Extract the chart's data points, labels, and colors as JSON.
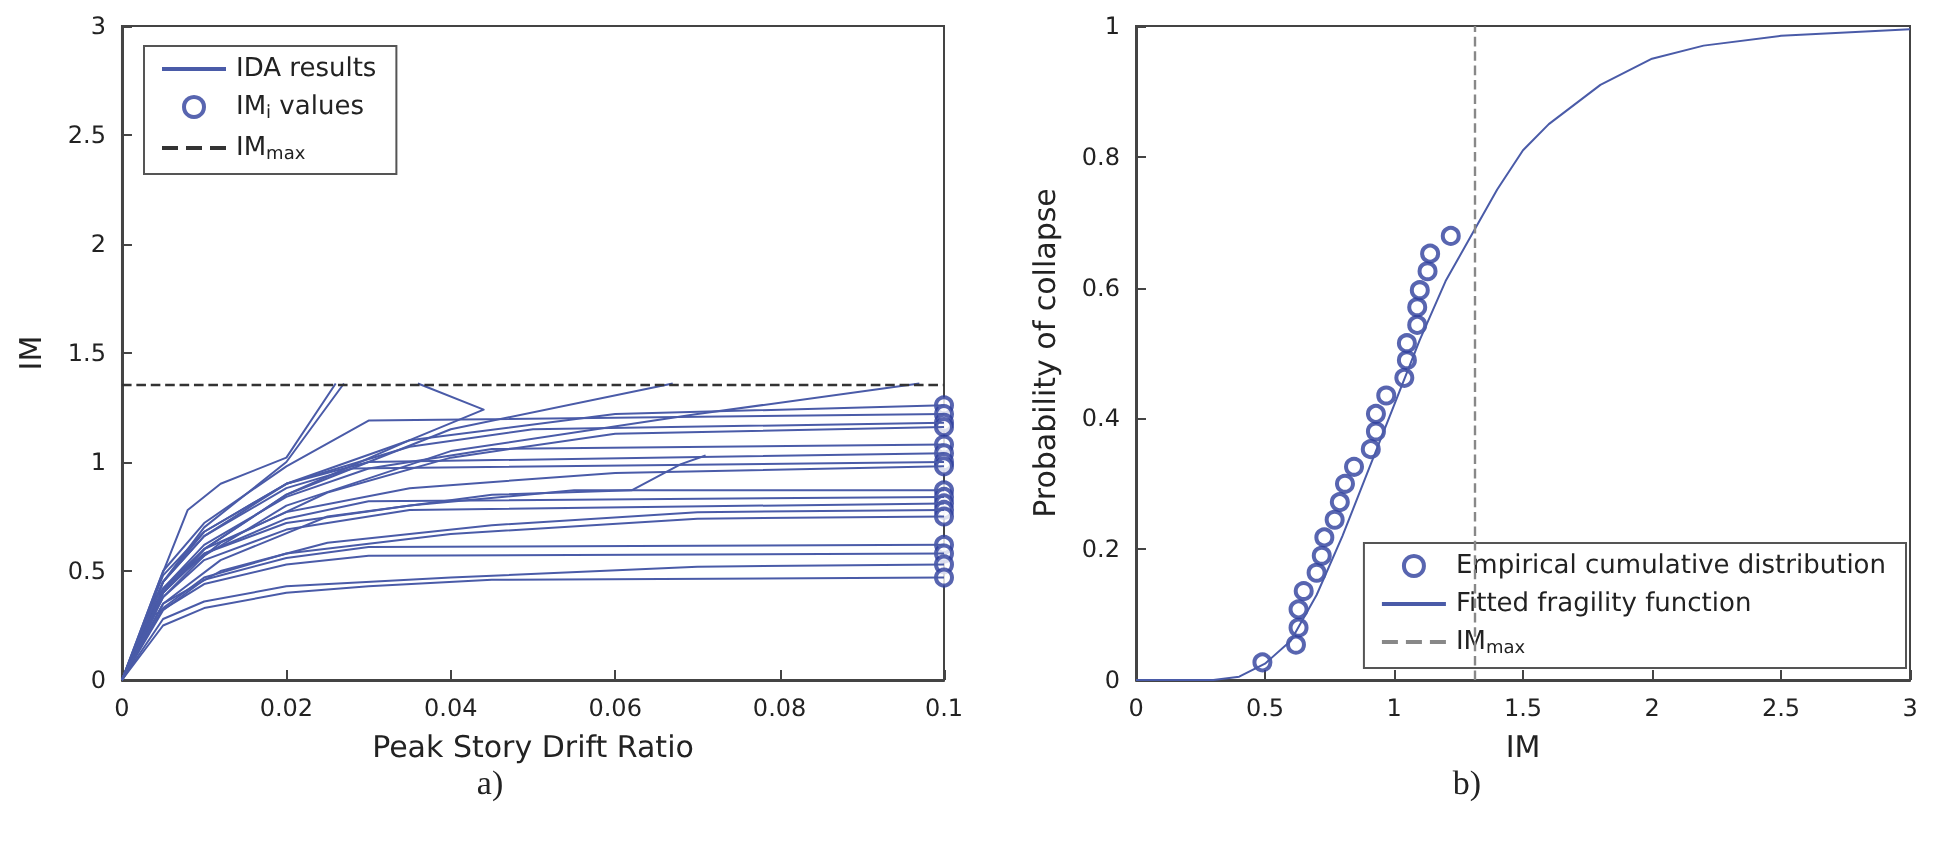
{
  "chart_data": [
    {
      "type": "line",
      "xlabel": "Peak Story Drift Ratio",
      "ylabel": "IM",
      "xlim": [
        0,
        0.1
      ],
      "xticks": [
        0,
        0.02,
        0.04,
        0.06,
        0.08,
        0.1
      ],
      "ylim": [
        0,
        3
      ],
      "yticks": [
        0,
        0.5,
        1,
        1.5,
        2,
        2.5,
        3
      ],
      "legend": "top left",
      "grid": false,
      "annotations": [
        "a)"
      ],
      "ref_lines": [
        {
          "axis": "y",
          "value": 1.36,
          "label": "IM$_{max}$",
          "color": "#333333",
          "line_style": "dashed"
        }
      ],
      "series": [
        {
          "name": "IDA results",
          "color": "#4a5ba8",
          "marker": "none",
          "x": [
            0,
            0.005,
            0.01,
            0.02,
            0.03,
            0.045,
            0.1
          ],
          "values": [
            0,
            0.25,
            0.33,
            0.4,
            0.43,
            0.46,
            0.47
          ]
        },
        {
          "color": "#4a5ba8",
          "marker": "none",
          "x": [
            0,
            0.005,
            0.01,
            0.02,
            0.04,
            0.07,
            0.1
          ],
          "values": [
            0,
            0.28,
            0.36,
            0.43,
            0.47,
            0.52,
            0.53
          ]
        },
        {
          "color": "#4a5ba8",
          "marker": "none",
          "x": [
            0,
            0.004,
            0.01,
            0.02,
            0.03,
            0.1
          ],
          "values": [
            0,
            0.3,
            0.44,
            0.53,
            0.57,
            0.58
          ]
        },
        {
          "color": "#4a5ba8",
          "marker": "none",
          "x": [
            0,
            0.005,
            0.01,
            0.02,
            0.03,
            0.1
          ],
          "values": [
            0,
            0.32,
            0.46,
            0.56,
            0.61,
            0.62
          ]
        },
        {
          "color": "#4a5ba8",
          "marker": "none",
          "x": [
            0,
            0.005,
            0.01,
            0.02,
            0.04,
            0.07,
            0.1
          ],
          "values": [
            0,
            0.33,
            0.47,
            0.58,
            0.67,
            0.74,
            0.75
          ]
        },
        {
          "color": "#4a5ba8",
          "marker": "none",
          "x": [
            0,
            0.005,
            0.012,
            0.025,
            0.045,
            0.07,
            0.1
          ],
          "values": [
            0,
            0.35,
            0.5,
            0.63,
            0.71,
            0.77,
            0.78
          ]
        },
        {
          "color": "#4a5ba8",
          "marker": "none",
          "x": [
            0,
            0.005,
            0.01,
            0.02,
            0.035,
            0.1
          ],
          "values": [
            0,
            0.38,
            0.55,
            0.69,
            0.78,
            0.81
          ]
        },
        {
          "color": "#4a5ba8",
          "marker": "none",
          "x": [
            0,
            0.005,
            0.01,
            0.02,
            0.03,
            0.1
          ],
          "values": [
            0,
            0.4,
            0.58,
            0.74,
            0.82,
            0.84
          ]
        },
        {
          "color": "#4a5ba8",
          "marker": "none",
          "x": [
            0,
            0.004,
            0.01,
            0.02,
            0.035,
            0.055,
            0.1
          ],
          "values": [
            0,
            0.38,
            0.58,
            0.72,
            0.8,
            0.87,
            0.87
          ]
        },
        {
          "color": "#4a5ba8",
          "marker": "none",
          "x": [
            0,
            0.005,
            0.01,
            0.02,
            0.035,
            0.06,
            0.1
          ],
          "values": [
            0,
            0.42,
            0.6,
            0.77,
            0.88,
            0.95,
            0.98
          ]
        },
        {
          "color": "#4a5ba8",
          "marker": "none",
          "x": [
            0,
            0.005,
            0.01,
            0.02,
            0.028,
            0.1
          ],
          "values": [
            0,
            0.45,
            0.66,
            0.88,
            0.97,
            1
          ]
        },
        {
          "color": "#4a5ba8",
          "marker": "none",
          "x": [
            0,
            0.005,
            0.01,
            0.02,
            0.03,
            0.1
          ],
          "values": [
            0,
            0.45,
            0.68,
            0.9,
            1,
            1.04
          ]
        },
        {
          "color": "#4a5ba8",
          "marker": "none",
          "x": [
            0,
            0.005,
            0.01,
            0.02,
            0.03,
            0.045,
            0.1
          ],
          "values": [
            0,
            0.42,
            0.62,
            0.84,
            0.97,
            1.06,
            1.08
          ]
        },
        {
          "color": "#4a5ba8",
          "marker": "none",
          "x": [
            0,
            0.005,
            0.012,
            0.025,
            0.04,
            0.06,
            0.1
          ],
          "values": [
            0,
            0.42,
            0.63,
            0.86,
            1.02,
            1.13,
            1.16
          ]
        },
        {
          "color": "#4a5ba8",
          "marker": "none",
          "x": [
            0,
            0.005,
            0.01,
            0.02,
            0.035,
            0.05,
            0.1
          ],
          "values": [
            0,
            0.48,
            0.68,
            0.9,
            1.07,
            1.15,
            1.18
          ]
        },
        {
          "color": "#4a5ba8",
          "marker": "none",
          "x": [
            0,
            0.005,
            0.01,
            0.02,
            0.03,
            0.1
          ],
          "values": [
            0,
            0.5,
            0.72,
            0.98,
            1.19,
            1.22
          ]
        },
        {
          "color": "#4a5ba8",
          "marker": "none",
          "x": [
            0,
            0.005,
            0.01,
            0.02,
            0.035,
            0.06,
            0.1
          ],
          "values": [
            0,
            0.45,
            0.66,
            0.9,
            1.1,
            1.22,
            1.26
          ]
        },
        {
          "color": "#4a5ba8",
          "marker": "none",
          "x": [
            0,
            0.004,
            0.008,
            0.012,
            0.02,
            0.026
          ],
          "values": [
            0,
            0.4,
            0.78,
            0.9,
            1.02,
            1.36
          ]
        },
        {
          "color": "#4a5ba8",
          "marker": "none",
          "x": [
            0,
            0.005,
            0.01,
            0.02,
            0.027
          ],
          "values": [
            0,
            0.45,
            0.7,
            1,
            1.36
          ]
        },
        {
          "color": "#4a5ba8",
          "marker": "none",
          "x": [
            0,
            0.005,
            0.01,
            0.02,
            0.035,
            0.044,
            0.036
          ],
          "values": [
            0,
            0.4,
            0.6,
            0.85,
            1.1,
            1.24,
            1.36
          ]
        },
        {
          "color": "#4a5ba8",
          "marker": "none",
          "x": [
            0,
            0.005,
            0.01,
            0.02,
            0.04,
            0.067
          ],
          "values": [
            0,
            0.4,
            0.6,
            0.85,
            1.15,
            1.36
          ]
        },
        {
          "color": "#4a5ba8",
          "marker": "none",
          "x": [
            0,
            0.005,
            0.01,
            0.02,
            0.04,
            0.07,
            0.097
          ],
          "values": [
            0,
            0.38,
            0.57,
            0.8,
            1.05,
            1.22,
            1.36
          ]
        },
        {
          "color": "#4a5ba8",
          "marker": "none",
          "x": [
            0,
            0.005,
            0.012,
            0.025,
            0.045,
            0.062,
            0.068,
            0.071
          ],
          "values": [
            0,
            0.35,
            0.55,
            0.75,
            0.85,
            0.87,
            0.99,
            1.03
          ]
        },
        {
          "name": "IM$_{i}$ values",
          "type": "scatter",
          "marker": "circle",
          "color": "#2e3e9c",
          "x": [
            0.1,
            0.1,
            0.1,
            0.1,
            0.1,
            0.1,
            0.1,
            0.1,
            0.1,
            0.1,
            0.1,
            0.1,
            0.1,
            0.1,
            0.1,
            0.1,
            0.1
          ],
          "values": [
            1.26,
            1.22,
            1.18,
            1.16,
            1.08,
            1.04,
            1,
            0.98,
            0.87,
            0.84,
            0.81,
            0.78,
            0.75,
            0.62,
            0.58,
            0.53,
            0.47
          ]
        }
      ]
    },
    {
      "type": "scatter",
      "xlabel": "IM",
      "ylabel": "Probability of collapse",
      "xlim": [
        0,
        3
      ],
      "xticks": [
        0,
        0.5,
        1,
        1.5,
        2,
        2.5,
        3
      ],
      "ylim": [
        0,
        1
      ],
      "yticks": [
        0,
        0.2,
        0.4,
        0.6,
        0.8,
        1
      ],
      "legend": "bottom right",
      "grid": false,
      "annotations": [
        "b)"
      ],
      "ref_lines": [
        {
          "axis": "x",
          "value": 1.31,
          "label": "IM$_{max}$",
          "color": "#888888",
          "line_style": "dashed"
        }
      ],
      "series": [
        {
          "name": "Empirical cumulative distribution",
          "marker": "circle",
          "color": "#2e3e9c",
          "x": [
            0.49,
            0.62,
            0.63,
            0.63,
            0.65,
            0.7,
            0.72,
            0.73,
            0.77,
            0.79,
            0.81,
            0.845,
            0.91,
            0.93,
            0.93,
            0.97,
            1.04,
            1.05,
            1.05,
            1.09,
            1.09,
            1.1,
            1.13,
            1.14,
            1.22
          ],
          "values": [
            0.027,
            0.054,
            0.08,
            0.108,
            0.136,
            0.164,
            0.19,
            0.218,
            0.245,
            0.272,
            0.3,
            0.326,
            0.353,
            0.38,
            0.407,
            0.435,
            0.462,
            0.489,
            0.515,
            0.543,
            0.57,
            0.596,
            0.625,
            0.652,
            0.679
          ]
        },
        {
          "name": "Fitted fragility function",
          "type": "line",
          "marker": "none",
          "color": "#4a5ba8",
          "x": [
            0,
            0.3,
            0.4,
            0.5,
            0.6,
            0.7,
            0.8,
            0.9,
            1,
            1.1,
            1.2,
            1.3,
            1.4,
            1.5,
            1.6,
            1.8,
            2,
            2.2,
            2.5,
            3
          ],
          "values": [
            0,
            0,
            0.005,
            0.025,
            0.06,
            0.13,
            0.22,
            0.32,
            0.42,
            0.52,
            0.61,
            0.68,
            0.75,
            0.81,
            0.85,
            0.91,
            0.95,
            0.97,
            0.985,
            0.995
          ]
        }
      ]
    }
  ]
}
